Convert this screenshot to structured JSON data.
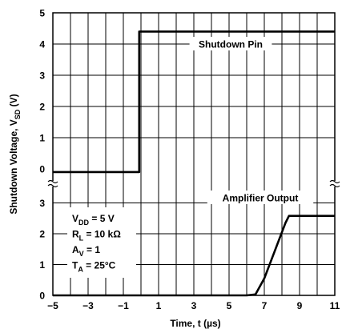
{
  "chart_data": {
    "type": "line",
    "xlabel": "Time, t (µs)",
    "ylabel": "Shutdown Voltage, V",
    "ylabel_subscript": "SD",
    "ylabel_unit": "(V)",
    "x_ticks": [
      "−5",
      "−3",
      "−1",
      "1",
      "3",
      "5",
      "7",
      "9",
      "11"
    ],
    "upper_y_ticks": [
      "5",
      "4",
      "3",
      "2",
      "1",
      "0"
    ],
    "lower_y_ticks": [
      "3",
      "2",
      "1",
      "0"
    ],
    "xlim": [
      -5,
      11
    ],
    "upper_panel_ylim": [
      -0.1,
      5
    ],
    "lower_panel_ylim": [
      0,
      3.2
    ],
    "grid": true,
    "series": [
      {
        "name": "Shutdown Pin",
        "panel": "upper",
        "x": [
          -5,
          -0.1,
          -0.1,
          11
        ],
        "y": [
          -0.1,
          -0.1,
          4.4,
          4.4
        ]
      },
      {
        "name": "Amplifier Output",
        "panel": "lower",
        "x": [
          -5,
          6.0,
          6.5,
          7.0,
          7.6,
          8.2,
          8.4,
          8.6,
          11
        ],
        "y": [
          0,
          0,
          0.03,
          0.55,
          1.45,
          2.35,
          2.58,
          2.58,
          2.58
        ]
      }
    ],
    "conditions": [
      {
        "main": "V",
        "sub": "DD",
        "rest": " = 5 V"
      },
      {
        "main": "R",
        "sub": "L",
        "rest": " = 10 kΩ"
      },
      {
        "main": "A",
        "sub": "V",
        "rest": " = 1"
      },
      {
        "main": "T",
        "sub": "A",
        "rest": " = 25°C"
      }
    ]
  }
}
